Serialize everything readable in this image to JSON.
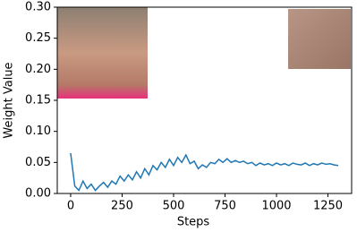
{
  "chart_data": {
    "type": "line",
    "x_label": "Steps",
    "y_label": "Weight Value",
    "x": [
      0,
      20,
      40,
      60,
      80,
      100,
      120,
      140,
      160,
      180,
      200,
      220,
      240,
      260,
      280,
      300,
      320,
      340,
      360,
      380,
      400,
      420,
      440,
      460,
      480,
      500,
      520,
      540,
      560,
      580,
      600,
      620,
      640,
      660,
      680,
      700,
      720,
      740,
      760,
      780,
      800,
      820,
      840,
      860,
      880,
      900,
      920,
      940,
      960,
      980,
      1000,
      1020,
      1040,
      1060,
      1080,
      1100,
      1120,
      1140,
      1160,
      1180,
      1200,
      1220,
      1240,
      1260,
      1280,
      1300
    ],
    "series": [
      {
        "color": "#1f77b4",
        "values": [
          0.065,
          0.012,
          0.005,
          0.02,
          0.008,
          0.015,
          0.005,
          0.012,
          0.018,
          0.01,
          0.02,
          0.015,
          0.028,
          0.02,
          0.03,
          0.022,
          0.035,
          0.025,
          0.04,
          0.03,
          0.045,
          0.038,
          0.05,
          0.042,
          0.055,
          0.045,
          0.058,
          0.05,
          0.062,
          0.048,
          0.052,
          0.04,
          0.046,
          0.042,
          0.05,
          0.048,
          0.055,
          0.05,
          0.056,
          0.05,
          0.053,
          0.05,
          0.052,
          0.048,
          0.05,
          0.045,
          0.049,
          0.046,
          0.048,
          0.045,
          0.049,
          0.046,
          0.048,
          0.045,
          0.049,
          0.047,
          0.046,
          0.049,
          0.045,
          0.048,
          0.046,
          0.049,
          0.047,
          0.048,
          0.046,
          0.045
        ]
      }
    ],
    "xlim": [
      -65,
      1365
    ],
    "ylim": [
      0,
      0.3
    ],
    "xticks": [
      0,
      250,
      500,
      750,
      1000,
      1250
    ],
    "yticks": [
      {
        "value": 0,
        "label": "0.00"
      },
      {
        "value": 0.05,
        "label": "0.05"
      },
      {
        "value": 0.1,
        "label": "0.10"
      },
      {
        "value": 0.15,
        "label": "0.15"
      },
      {
        "value": 0.2,
        "label": "0.20"
      },
      {
        "value": 0.25,
        "label": "0.25"
      },
      {
        "value": 0.3,
        "label": "0.30"
      }
    ]
  }
}
